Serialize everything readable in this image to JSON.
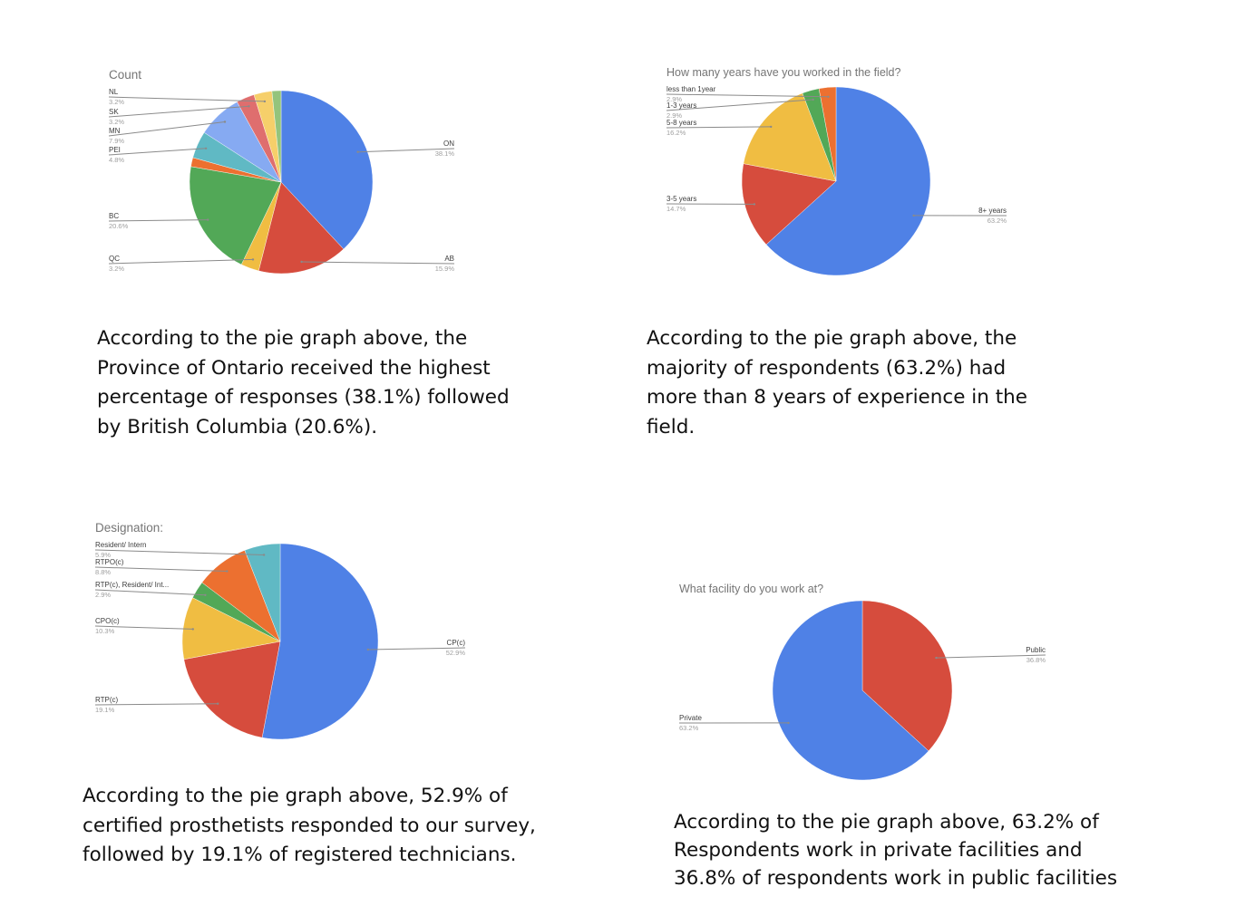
{
  "chart_data": [
    {
      "type": "pie",
      "title": "Count",
      "colors": {
        "ON": "#4f81e6",
        "AB": "#d64c3d",
        "QC": "#f0bd42",
        "BC": "#52a857",
        "_orange": "#ec7030",
        "PEI": "#60b9c4",
        "MN": "#86aaf2",
        "SK": "#df6e6e",
        "NL": "#f6cf6a",
        "_last": "#94c47c"
      },
      "slices": [
        {
          "label": "ON",
          "pct_label": "38.1%",
          "value": 38.1,
          "color": "#4f81e6"
        },
        {
          "label": "AB",
          "pct_label": "15.9%",
          "value": 15.9,
          "color": "#d64c3d"
        },
        {
          "label": "QC",
          "pct_label": "3.2%",
          "value": 3.2,
          "color": "#f0bd42"
        },
        {
          "label": "BC",
          "pct_label": "20.6%",
          "value": 20.6,
          "color": "#52a857"
        },
        {
          "label": "",
          "pct_label": "",
          "value": 1.6,
          "color": "#ec7030"
        },
        {
          "label": "PEI",
          "pct_label": "4.8%",
          "value": 4.8,
          "color": "#60b9c4"
        },
        {
          "label": "MN",
          "pct_label": "7.9%",
          "value": 7.9,
          "color": "#86aaf2"
        },
        {
          "label": "SK",
          "pct_label": "3.2%",
          "value": 3.2,
          "color": "#df6e6e"
        },
        {
          "label": "NL",
          "pct_label": "3.2%",
          "value": 3.2,
          "color": "#f6cf6a"
        },
        {
          "label": "",
          "pct_label": "",
          "value": 1.6,
          "color": "#94c47c"
        }
      ]
    },
    {
      "type": "pie",
      "title": "How many years have you worked in the field?",
      "slices": [
        {
          "label": "8+ years",
          "pct_label": "63.2%",
          "value": 63.2,
          "color": "#4f81e6"
        },
        {
          "label": "3-5 years",
          "pct_label": "14.7%",
          "value": 14.7,
          "color": "#d64c3d"
        },
        {
          "label": "5-8 years",
          "pct_label": "16.2%",
          "value": 16.2,
          "color": "#f0bd42"
        },
        {
          "label": "1-3 years",
          "pct_label": "2.9%",
          "value": 2.9,
          "color": "#52a857"
        },
        {
          "label": "less than 1year",
          "pct_label": "2.9%",
          "value": 2.9,
          "color": "#ec7030"
        }
      ]
    },
    {
      "type": "pie",
      "title": "Designation:",
      "slices": [
        {
          "label": "CP(c)",
          "pct_label": "52.9%",
          "value": 52.9,
          "color": "#4f81e6"
        },
        {
          "label": "RTP(c)",
          "pct_label": "19.1%",
          "value": 19.1,
          "color": "#d64c3d"
        },
        {
          "label": "CPO(c)",
          "pct_label": "10.3%",
          "value": 10.3,
          "color": "#f0bd42"
        },
        {
          "label": "RTP(c), Resident/ Int...",
          "pct_label": "2.9%",
          "value": 2.9,
          "color": "#52a857"
        },
        {
          "label": "RTPO(c)",
          "pct_label": "8.8%",
          "value": 8.8,
          "color": "#ec7030"
        },
        {
          "label": "Resident/ Intern",
          "pct_label": "5.9%",
          "value": 5.9,
          "color": "#60b9c4"
        }
      ]
    },
    {
      "type": "pie",
      "title": "What facility do you work at?",
      "slices": [
        {
          "label": "Public",
          "pct_label": "36.8%",
          "value": 36.8,
          "color": "#d64c3d"
        },
        {
          "label": "Private",
          "pct_label": "63.2%",
          "value": 63.2,
          "color": "#4f81e6"
        }
      ]
    }
  ],
  "captions": [
    "According to the pie graph above, the Province of Ontario received the highest percentage of responses (38.1%) followed by British Columbia (20.6%).",
    "According to the pie graph above, the majority of respondents (63.2%) had more than 8 years of experience in the field.",
    "According to the pie graph above, 52.9% of certified prosthetists responded to our survey, followed by 19.1% of registered technicians.",
    "According to the pie graph above, 63.2% of Respondents work in private facilities and 36.8% of respondents work in public facilities"
  ]
}
